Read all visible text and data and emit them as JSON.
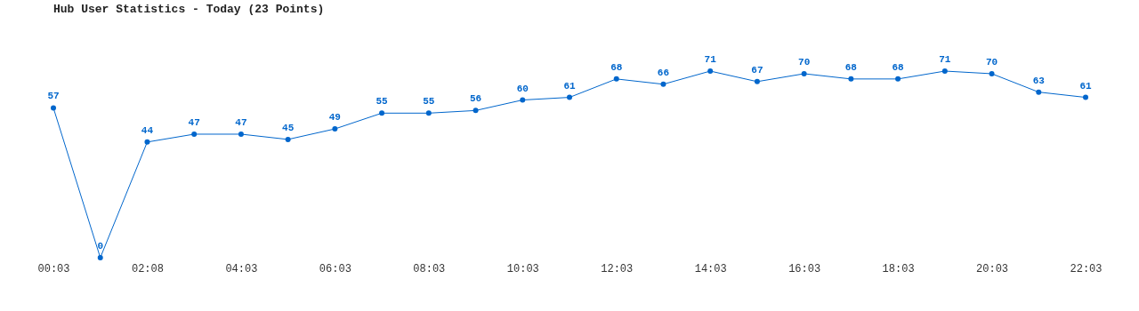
{
  "chart_data": {
    "type": "line",
    "title": "Hub User Statistics - Today (23 Points)",
    "categories": [
      "00:03",
      null,
      "02:08",
      null,
      "04:03",
      null,
      "06:03",
      null,
      "08:03",
      null,
      "10:03",
      null,
      "12:03",
      null,
      "14:03",
      null,
      "16:03",
      null,
      "18:03",
      null,
      "20:03",
      null,
      "22:03"
    ],
    "series": [
      {
        "color": "#0066cc",
        "values": [
          57,
          0,
          44,
          47,
          47,
          45,
          49,
          55,
          55,
          56,
          60,
          61,
          68,
          66,
          71,
          67,
          70,
          68,
          68,
          71,
          70,
          63,
          61
        ]
      }
    ],
    "data_labels": true,
    "marker": "circle",
    "line_style": "solid",
    "grid": false
  }
}
